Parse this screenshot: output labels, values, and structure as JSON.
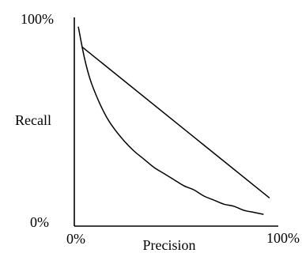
{
  "chart_data": {
    "type": "line",
    "xlabel": "Precision",
    "ylabel": "Recall",
    "xlim": [
      0,
      100
    ],
    "ylim": [
      0,
      100
    ],
    "x_tick_labels": [
      "0%",
      "100%"
    ],
    "y_tick_labels": [
      "0%",
      "100%"
    ],
    "grid": false,
    "series": [
      {
        "x": [
          4,
          98
        ],
        "y": [
          87,
          13
        ]
      },
      {
        "x": [
          2,
          5,
          8,
          12,
          16,
          20,
          25,
          30,
          35,
          40,
          45,
          50,
          55,
          60,
          65,
          70,
          75,
          80,
          85,
          90,
          95
        ],
        "y": [
          97,
          82,
          71,
          61,
          53,
          47,
          41,
          36,
          32,
          28,
          25,
          22,
          19,
          17,
          14,
          12,
          10,
          9,
          7,
          6,
          5
        ]
      }
    ]
  }
}
